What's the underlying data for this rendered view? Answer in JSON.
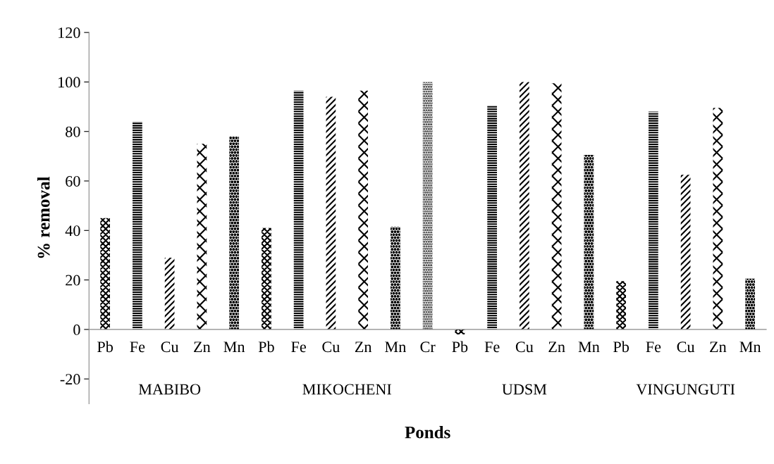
{
  "chart_data": {
    "type": "bar",
    "xlabel": "Ponds",
    "ylabel": "% removal",
    "categories": [
      "Pb",
      "Fe",
      "Cu",
      "Zn",
      "Mn",
      "Pb",
      "Fe",
      "Cu",
      "Zn",
      "Mn",
      "Cr",
      "Pb",
      "Fe",
      "Cu",
      "Zn",
      "Mn",
      "Pb",
      "Fe",
      "Cu",
      "Zn",
      "Mn"
    ],
    "values": [
      45,
      84,
      29,
      75,
      78,
      41,
      96.5,
      94,
      96.5,
      41.5,
      100,
      -2,
      90.5,
      100,
      99.5,
      70.5,
      19.5,
      88,
      62.5,
      89.5,
      20.5
    ],
    "color": "#000000",
    "annotations": [
      "MABIBO",
      "MIKOCHENI",
      "UDSM",
      "VINGUNGUTI"
    ],
    "ylim": [
      -30,
      120
    ],
    "yticks": [
      -20,
      0,
      20,
      40,
      60,
      80,
      100,
      120
    ],
    "grid": false,
    "legend": false
  }
}
